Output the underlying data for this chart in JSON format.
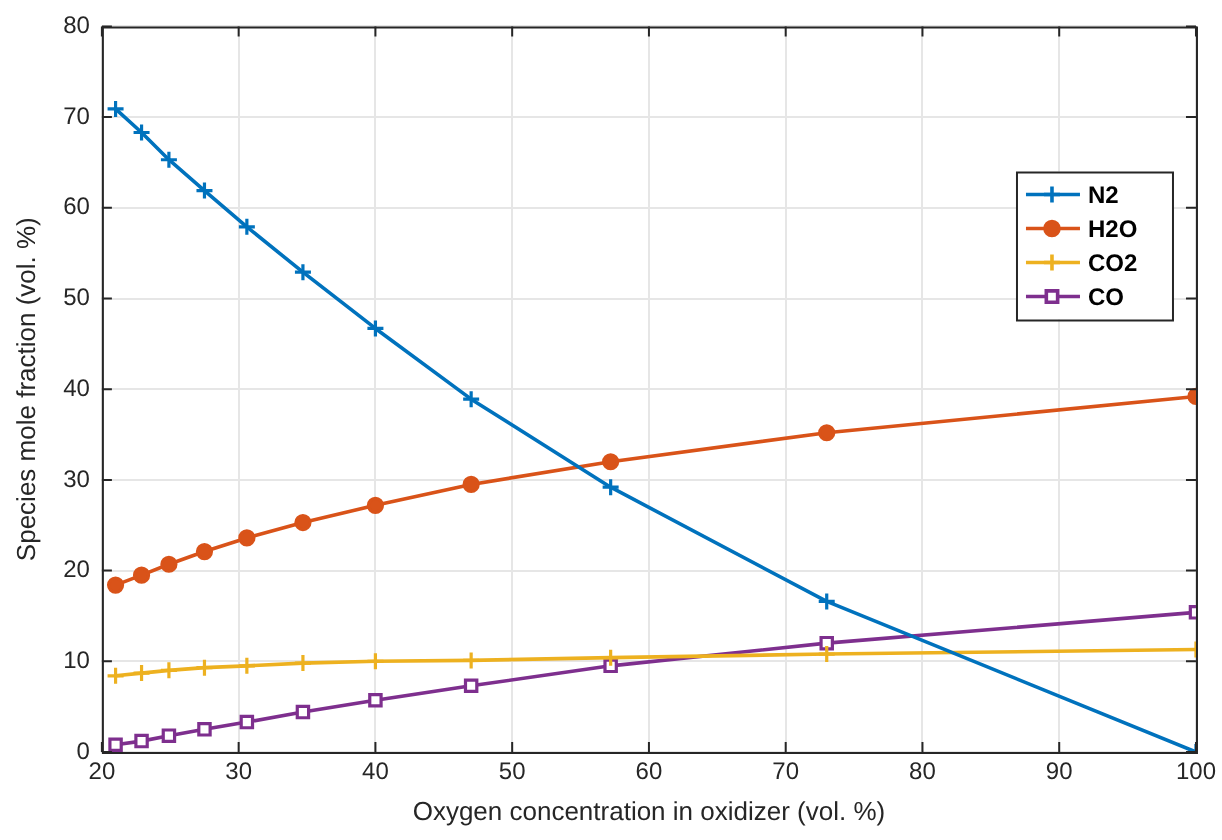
{
  "chart_data": {
    "type": "line",
    "xlabel": "Oxygen concentration in oxidizer (vol. %)",
    "ylabel": "Species mole fraction (vol. %)",
    "x": [
      21,
      22.9,
      24.9,
      27.5,
      30.6,
      34.7,
      40,
      47,
      57.2,
      73,
      100
    ],
    "series": [
      {
        "name": "N2",
        "color": "#0072bd",
        "marker": "cross",
        "values": [
          70.9,
          68.3,
          65.3,
          61.9,
          57.9,
          52.9,
          46.7,
          38.9,
          29.2,
          16.6,
          0
        ]
      },
      {
        "name": "H2O",
        "color": "#d95319",
        "marker": "circle",
        "values": [
          18.4,
          19.5,
          20.7,
          22.1,
          23.6,
          25.3,
          27.2,
          29.5,
          32.0,
          35.2,
          39.2
        ]
      },
      {
        "name": "CO2",
        "color": "#edb120",
        "marker": "cross",
        "values": [
          8.4,
          8.7,
          9.0,
          9.3,
          9.5,
          9.8,
          10.0,
          10.1,
          10.4,
          10.8,
          11.3
        ]
      },
      {
        "name": "CO",
        "color": "#7e2f8e",
        "marker": "square",
        "values": [
          0.8,
          1.2,
          1.8,
          2.5,
          3.3,
          4.4,
          5.7,
          7.3,
          9.5,
          12.0,
          15.4
        ]
      }
    ],
    "xlim": [
      20,
      100
    ],
    "xticks": [
      20,
      30,
      40,
      50,
      60,
      70,
      80,
      90,
      100
    ],
    "ylim": [
      0,
      80
    ],
    "yticks": [
      0,
      10,
      20,
      30,
      40,
      50,
      60,
      70,
      80
    ],
    "grid": true,
    "legend": "right",
    "line_style": "solid"
  }
}
